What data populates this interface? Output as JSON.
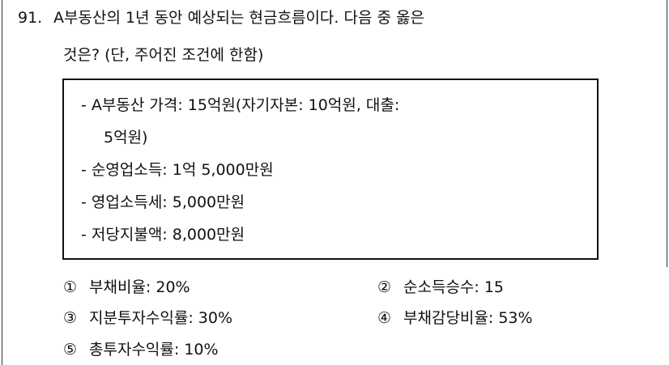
{
  "question": {
    "number": "91.",
    "stem_lines": [
      "A부동산의 1년 동안 예상되는 현금흐름이다. 다음 중 옳은",
      "것은? (단, 주어진 조건에 한함)"
    ]
  },
  "conditions": {
    "lines": [
      "- A부동산 가격: 15억원(자기자본: 10억원, 대출:",
      "5억원)",
      "- 순영업소득: 1억 5,000만원",
      "- 영업소득세: 5,000만원",
      "- 저당지불액: 8,000만원"
    ]
  },
  "options": [
    {
      "marker": "①",
      "text": "부채비율: 20%"
    },
    {
      "marker": "②",
      "text": "순소득승수: 15"
    },
    {
      "marker": "③",
      "text": "지분투자수익률: 30%"
    },
    {
      "marker": "④",
      "text": "부채감당비율: 53%"
    },
    {
      "marker": "⑤",
      "text": "총투자수익률: 10%"
    }
  ]
}
